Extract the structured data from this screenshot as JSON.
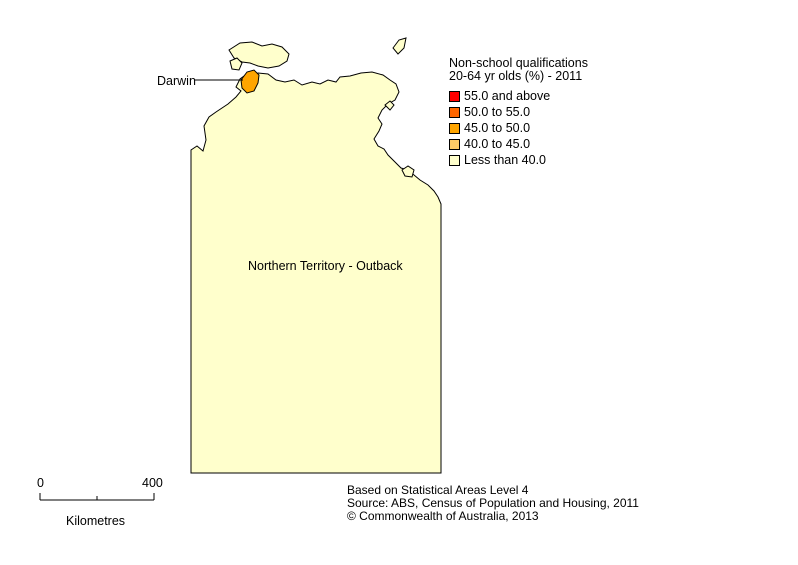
{
  "map": {
    "regions": [
      {
        "name": "Northern Territory - Outback",
        "category_index": 4,
        "color": "#FFFFCC"
      },
      {
        "name": "Darwin",
        "category_index": 2,
        "color": "#FFA500"
      }
    ],
    "labels": {
      "outback": "Northern Territory - Outback",
      "darwin": "Darwin"
    },
    "outline_color": "#000000"
  },
  "legend": {
    "title_line1": "Non-school qualifications",
    "title_line2": "20-64 yr olds (%) - 2011",
    "items": [
      {
        "label": "55.0 and above",
        "color": "#FF0000"
      },
      {
        "label": "50.0 to 55.0",
        "color": "#FF6600"
      },
      {
        "label": "45.0 to 50.0",
        "color": "#FFA500"
      },
      {
        "label": "40.0 to 45.0",
        "color": "#FFCC66"
      },
      {
        "label": "Less than 40.0",
        "color": "#FFFFCC"
      }
    ]
  },
  "scale_bar": {
    "start_label": "0",
    "end_label": "400",
    "unit_label": "Kilometres"
  },
  "footer": {
    "line1": "Based on Statistical Areas Level 4",
    "line2": "Source: ABS, Census of Population and Housing, 2011",
    "line3": "© Commonwealth of Australia, 2013"
  }
}
